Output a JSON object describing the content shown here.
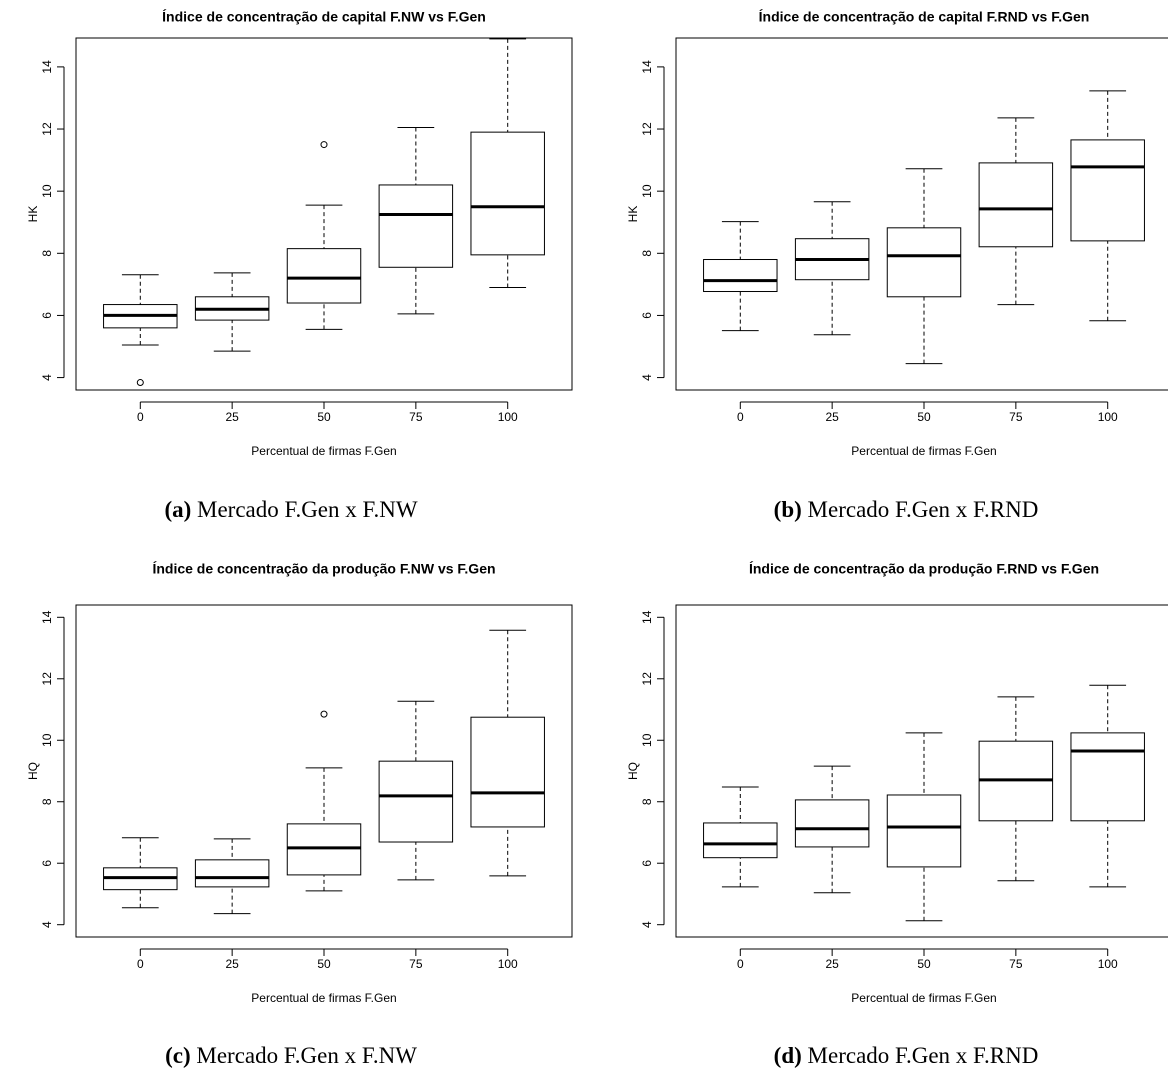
{
  "chart_data": [
    {
      "type": "box",
      "title": "Índice de concentração de capital F.NW vs F.Gen",
      "xlabel": "Percentual de firmas F.Gen",
      "ylabel": "HK",
      "caption_label": "(a)",
      "caption": "Mercado F.Gen x F.NW",
      "categories": [
        "0",
        "25",
        "50",
        "75",
        "100"
      ],
      "boxes": [
        {
          "whislo": 5.05,
          "q1": 5.6,
          "med": 6.0,
          "q3": 6.35,
          "whishi": 7.31,
          "fliers": [
            3.84
          ]
        },
        {
          "whislo": 4.85,
          "q1": 5.85,
          "med": 6.2,
          "q3": 6.6,
          "whishi": 7.37,
          "fliers": []
        },
        {
          "whislo": 5.55,
          "q1": 6.4,
          "med": 7.2,
          "q3": 8.15,
          "whishi": 9.55,
          "fliers": [
            11.5
          ]
        },
        {
          "whislo": 6.05,
          "q1": 7.55,
          "med": 9.25,
          "q3": 10.2,
          "whishi": 12.05,
          "fliers": []
        },
        {
          "whislo": 6.9,
          "q1": 7.95,
          "med": 9.5,
          "q3": 11.9,
          "whishi": 14.9,
          "fliers": []
        }
      ],
      "ylim": [
        3.6,
        14.93
      ],
      "yticks": [
        4,
        6,
        8,
        10,
        12,
        14
      ]
    },
    {
      "type": "box",
      "title": "Índice de concentração de capital F.RND vs F.Gen",
      "xlabel": "Percentual de firmas F.Gen",
      "ylabel": "HK",
      "caption_label": "(b)",
      "caption": "Mercado F.Gen x F.RND",
      "categories": [
        "0",
        "25",
        "50",
        "75",
        "100"
      ],
      "boxes": [
        {
          "whislo": 5.51,
          "q1": 6.77,
          "med": 7.12,
          "q3": 7.8,
          "whishi": 9.02,
          "fliers": []
        },
        {
          "whislo": 5.38,
          "q1": 7.15,
          "med": 7.8,
          "q3": 8.47,
          "whishi": 9.66,
          "fliers": []
        },
        {
          "whislo": 4.45,
          "q1": 6.6,
          "med": 7.92,
          "q3": 8.82,
          "whishi": 10.72,
          "fliers": []
        },
        {
          "whislo": 6.35,
          "q1": 8.21,
          "med": 9.43,
          "q3": 10.91,
          "whishi": 12.36,
          "fliers": []
        },
        {
          "whislo": 5.83,
          "q1": 8.4,
          "med": 10.78,
          "q3": 11.65,
          "whishi": 13.23,
          "fliers": []
        }
      ],
      "ylim": [
        3.6,
        14.93
      ],
      "yticks": [
        4,
        6,
        8,
        10,
        12,
        14
      ]
    },
    {
      "type": "box",
      "title": "Índice de concentração da produção F.NW vs F.Gen",
      "xlabel": "Percentual de firmas F.Gen",
      "ylabel": "HQ",
      "caption_label": "(c)",
      "caption": "Mercado F.Gen x F.NW",
      "categories": [
        "0",
        "25",
        "50",
        "75",
        "100"
      ],
      "boxes": [
        {
          "whislo": 4.55,
          "q1": 5.14,
          "med": 5.53,
          "q3": 5.85,
          "whishi": 6.83,
          "fliers": []
        },
        {
          "whislo": 4.36,
          "q1": 5.23,
          "med": 5.53,
          "q3": 6.11,
          "whishi": 6.79,
          "fliers": []
        },
        {
          "whislo": 5.1,
          "q1": 5.62,
          "med": 6.5,
          "q3": 7.28,
          "whishi": 9.1,
          "fliers": [
            10.85
          ]
        },
        {
          "whislo": 5.46,
          "q1": 6.69,
          "med": 8.19,
          "q3": 9.32,
          "whishi": 11.27,
          "fliers": []
        },
        {
          "whislo": 5.59,
          "q1": 7.18,
          "med": 8.29,
          "q3": 10.75,
          "whishi": 13.58,
          "fliers": []
        }
      ],
      "ylim": [
        3.6,
        14.4
      ],
      "yticks": [
        4,
        6,
        8,
        10,
        12,
        14
      ]
    },
    {
      "type": "box",
      "title": "Índice de concentração da produção F.RND vs F.Gen",
      "xlabel": "Percentual de firmas F.Gen",
      "ylabel": "HQ",
      "caption_label": "(d)",
      "caption": "Mercado F.Gen x F.RND",
      "categories": [
        "0",
        "25",
        "50",
        "75",
        "100"
      ],
      "boxes": [
        {
          "whislo": 5.23,
          "q1": 6.18,
          "med": 6.63,
          "q3": 7.31,
          "whishi": 8.48,
          "fliers": []
        },
        {
          "whislo": 5.04,
          "q1": 6.53,
          "med": 7.12,
          "q3": 8.06,
          "whishi": 9.16,
          "fliers": []
        },
        {
          "whislo": 4.13,
          "q1": 5.88,
          "med": 7.18,
          "q3": 8.22,
          "whishi": 10.24,
          "fliers": []
        },
        {
          "whislo": 5.43,
          "q1": 7.38,
          "med": 8.71,
          "q3": 9.97,
          "whishi": 11.41,
          "fliers": []
        },
        {
          "whislo": 5.23,
          "q1": 7.38,
          "med": 9.65,
          "q3": 10.24,
          "whishi": 11.79,
          "fliers": []
        }
      ],
      "ylim": [
        3.6,
        14.4
      ],
      "yticks": [
        4,
        6,
        8,
        10,
        12,
        14
      ]
    }
  ]
}
